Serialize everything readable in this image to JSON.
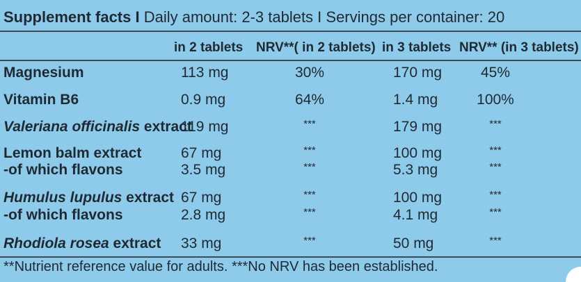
{
  "title": {
    "label": "Supplement facts I",
    "rest": "Daily amount: 2-3 tablets I Servings per container: 20"
  },
  "columns": [
    "in 2 tablets",
    "NRV**( in 2 tablets)",
    "in 3 tablets",
    "NRV** (in 3 tablets)"
  ],
  "rows": {
    "magnesium": {
      "name": "Magnesium",
      "v2": "113 mg",
      "nrv2": "30%",
      "v3": "170 mg",
      "nrv3": "45%"
    },
    "b6": {
      "name": "Vitamin B6",
      "v2": "0.9 mg",
      "nrv2": "64%",
      "v3": "1.4 mg",
      "nrv3": "100%"
    },
    "valeriana": {
      "name_italic": "Valeriana officinalis",
      "name_rest": " extract",
      "v2": "119 mg",
      "nrv2": "***",
      "v3": "179 mg",
      "nrv3": "***"
    },
    "lemon": {
      "name": "Lemon balm extract",
      "sub_name": "-of which flavons",
      "v2": "67 mg",
      "nrv2": "***",
      "v3": "100 mg",
      "nrv3": "***",
      "sub_v2": "3.5 mg",
      "sub_nrv2": "***",
      "sub_v3": "5.3 mg",
      "sub_nrv3": "***"
    },
    "humulus": {
      "name_italic": "Humulus lupulus",
      "name_rest": " extract",
      "sub_name": "-of which flavons",
      "v2": "67 mg",
      "nrv2": "***",
      "v3": "100 mg",
      "nrv3": "***",
      "sub_v2": "2.8 mg",
      "sub_nrv2": "***",
      "sub_v3": "4.1 mg",
      "sub_nrv3": "***"
    },
    "rhodiola": {
      "name_italic": "Rhodiola rosea",
      "name_rest": " extract",
      "v2": "33 mg",
      "nrv2": "***",
      "v3": "50 mg",
      "nrv3": "***"
    }
  },
  "footnote": "**Nutrient reference value for adults. ***No NRV has been established.",
  "colors": {
    "background": "#8ecae9",
    "text": "#1e2a33",
    "rules": "#3a4a56"
  }
}
